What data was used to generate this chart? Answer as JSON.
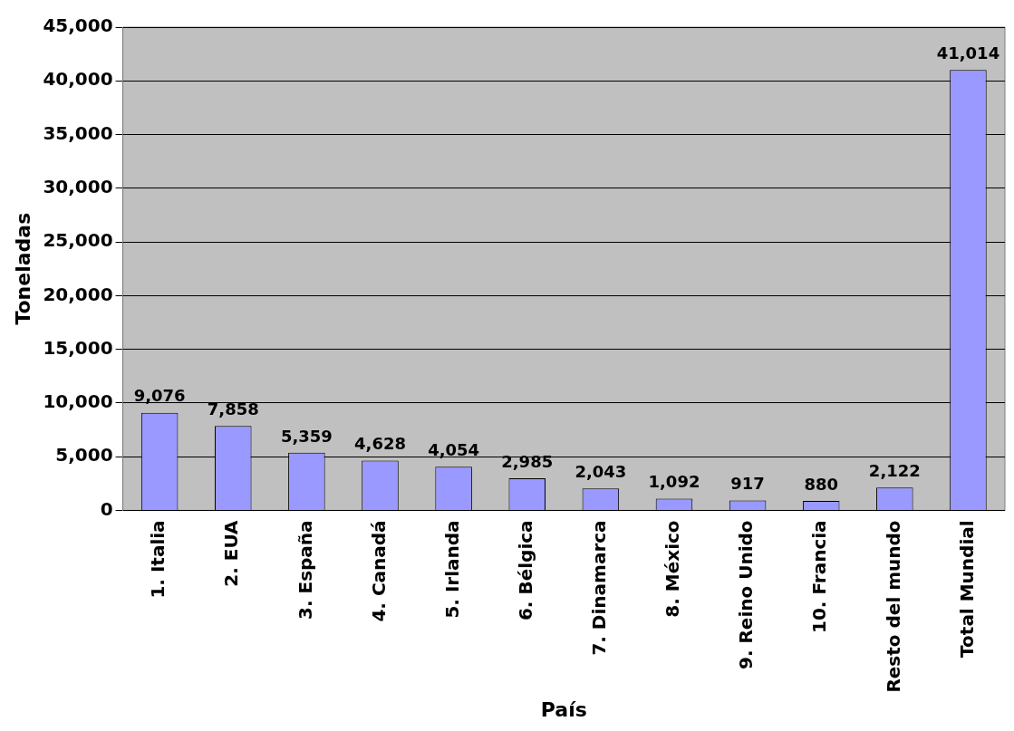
{
  "chart_data": {
    "type": "bar",
    "xlabel": "País",
    "ylabel": "Toneladas",
    "categories": [
      "1. Italia",
      "2. EUA",
      "3. España",
      "4. Canadá",
      "5. Irlanda",
      "6. Bélgica",
      "7. Dinamarca",
      "8. México",
      "9. Reino Unido",
      "10. Francia",
      "Resto del mundo",
      "Total Mundial"
    ],
    "values": [
      9076,
      7858,
      5359,
      4628,
      4054,
      2985,
      2043,
      1092,
      917,
      880,
      2122,
      41014
    ],
    "value_labels": [
      "9,076",
      "7,858",
      "5,359",
      "4,628",
      "4,054",
      "2,985",
      "2,043",
      "1,092",
      "917",
      "880",
      "2,122",
      "41,014"
    ],
    "color": "#9999ff",
    "ylim": [
      0,
      45000
    ],
    "yticks": [
      {
        "value": 0,
        "label": "0"
      },
      {
        "value": 5000,
        "label": "5,000"
      },
      {
        "value": 10000,
        "label": "10,000"
      },
      {
        "value": 15000,
        "label": "15,000"
      },
      {
        "value": 20000,
        "label": "20,000"
      },
      {
        "value": 25000,
        "label": "25,000"
      },
      {
        "value": 30000,
        "label": "30,000"
      },
      {
        "value": 35000,
        "label": "35,000"
      },
      {
        "value": 40000,
        "label": "40,000"
      },
      {
        "value": 45000,
        "label": "45,000"
      }
    ],
    "grid": "y"
  }
}
